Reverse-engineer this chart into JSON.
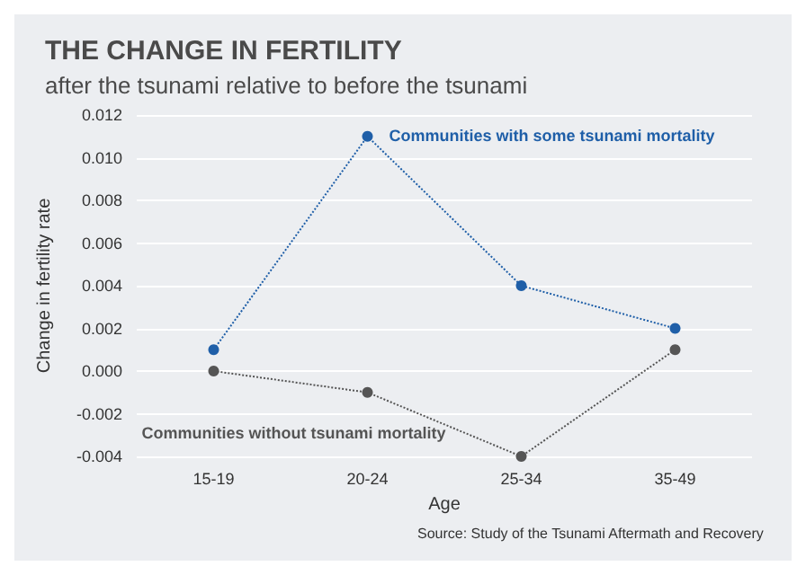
{
  "chart_data": {
    "type": "line",
    "title": "THE CHANGE IN FERTILITY",
    "subtitle": "after the tsunami relative to before the tsunami",
    "xlabel": "Age",
    "ylabel": "Change in fertility rate",
    "annotations": [
      "Source: Study of the Tsunami Aftermath and Recovery"
    ],
    "categories": [
      "15-19",
      "20-24",
      "25-34",
      "35-49"
    ],
    "series": [
      {
        "name": "Communities with some tsunami mortality",
        "color": "#1f5fa8",
        "values": [
          0.001,
          0.011,
          0.004,
          0.002
        ]
      },
      {
        "name": "Communities without tsunami mortality",
        "color": "#555555",
        "values": [
          0,
          -0.001,
          -0.004,
          0.001
        ]
      }
    ],
    "ylim": [
      -0.004,
      0.012
    ],
    "yticks": [
      -0.004,
      -0.002,
      {
        "value": 0,
        "label": "0.000"
      },
      0.002,
      0.004,
      0.006,
      0.008,
      {
        "value": 0.01,
        "label": "0.010"
      },
      0.012
    ],
    "grid": "y",
    "legend": false,
    "marker": "circle",
    "line_style": "dotted"
  }
}
